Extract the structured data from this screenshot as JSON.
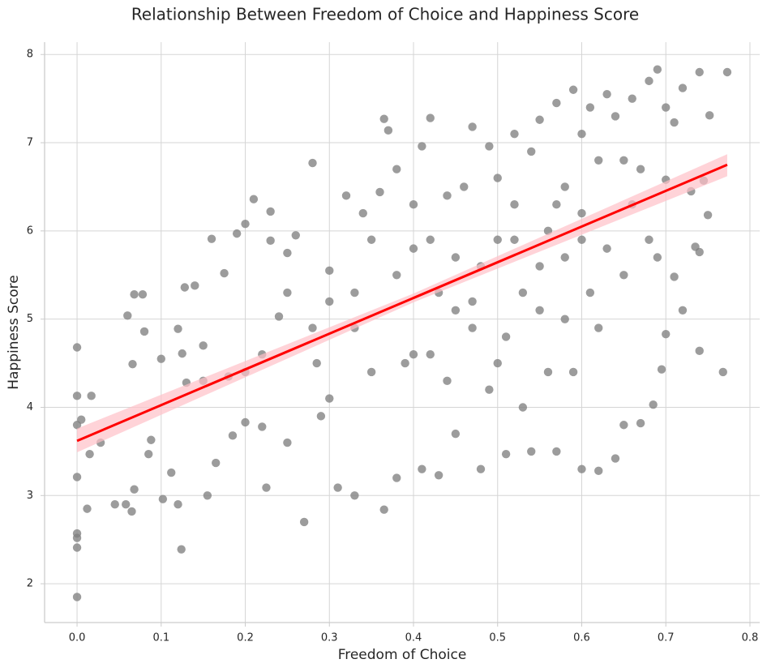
{
  "chart_data": {
    "type": "scatter",
    "title": "Relationship Between Freedom of Choice and Happiness Score",
    "x_label": "Freedom of Choice",
    "y_label": "Happiness Score",
    "x": [
      0,
      0,
      0,
      0,
      0,
      0,
      0,
      0,
      0.005,
      0.012,
      0.015,
      0.017,
      0.028,
      0.045,
      0.058,
      0.065,
      0.068,
      0.06,
      0.066,
      0.068,
      0.078,
      0.08,
      0.085,
      0.088,
      0.1,
      0.102,
      0.112,
      0.12,
      0.124,
      0.12,
      0.125,
      0.128,
      0.13,
      0.14,
      0.15,
      0.155,
      0.16,
      0.165,
      0.175,
      0.18,
      0.185,
      0.19,
      0.2,
      0.2,
      0.21,
      0.22,
      0.225,
      0.23,
      0.23,
      0.24,
      0.25,
      0.25,
      0.26,
      0.27,
      0.28,
      0.285,
      0.29,
      0.3,
      0.3,
      0.31,
      0.32,
      0.33,
      0.33,
      0.34,
      0.35,
      0.36,
      0.365,
      0.365,
      0.37,
      0.38,
      0.38,
      0.39,
      0.4,
      0.4,
      0.41,
      0.41,
      0.42,
      0.42,
      0.43,
      0.43,
      0.44,
      0.45,
      0.45,
      0.46,
      0.47,
      0.47,
      0.48,
      0.48,
      0.49,
      0.49,
      0.5,
      0.5,
      0.51,
      0.51,
      0.52,
      0.52,
      0.53,
      0.53,
      0.54,
      0.54,
      0.55,
      0.55,
      0.56,
      0.56,
      0.57,
      0.57,
      0.58,
      0.58,
      0.59,
      0.59,
      0.6,
      0.6,
      0.6,
      0.61,
      0.61,
      0.62,
      0.62,
      0.62,
      0.63,
      0.63,
      0.64,
      0.64,
      0.65,
      0.65,
      0.66,
      0.66,
      0.67,
      0.67,
      0.68,
      0.68,
      0.685,
      0.69,
      0.69,
      0.695,
      0.7,
      0.7,
      0.7,
      0.71,
      0.71,
      0.72,
      0.72,
      0.73,
      0.735,
      0.74,
      0.74,
      0.745,
      0.75,
      0.752,
      0.768,
      0.773,
      0.74,
      0.2,
      0.15,
      0.35,
      0.33,
      0.28,
      0.45,
      0.5,
      0.55,
      0.42,
      0.38,
      0.47,
      0.58,
      0.65,
      0.6,
      0.25,
      0.22,
      0.3,
      0.4,
      0.44,
      0.52,
      0.57
    ],
    "series": [
      {
        "color": "#808080",
        "values": [
          1.85,
          2.52,
          2.57,
          2.41,
          3.21,
          3.8,
          4.13,
          4.68,
          3.86,
          2.85,
          3.47,
          4.13,
          3.6,
          2.9,
          2.9,
          2.82,
          3.07,
          5.04,
          4.49,
          5.28,
          5.28,
          4.86,
          3.47,
          3.63,
          4.55,
          2.96,
          3.26,
          2.9,
          2.39,
          4.89,
          4.61,
          5.36,
          4.28,
          5.38,
          4.7,
          3.0,
          5.91,
          3.37,
          5.52,
          4.35,
          3.68,
          5.97,
          6.08,
          4.4,
          6.36,
          3.78,
          3.09,
          5.89,
          6.22,
          5.03,
          5.75,
          3.6,
          5.95,
          2.7,
          6.77,
          4.5,
          3.9,
          4.1,
          5.55,
          3.09,
          6.4,
          3.0,
          4.9,
          6.2,
          5.9,
          6.44,
          2.84,
          7.27,
          7.14,
          6.7,
          3.2,
          4.5,
          5.8,
          6.3,
          6.96,
          3.3,
          7.28,
          4.6,
          5.3,
          3.23,
          6.4,
          3.7,
          5.1,
          6.5,
          7.18,
          4.9,
          3.3,
          5.6,
          6.96,
          4.2,
          5.9,
          6.6,
          3.47,
          4.8,
          6.3,
          7.1,
          5.3,
          4.0,
          6.9,
          3.5,
          5.6,
          7.26,
          4.4,
          6.0,
          7.45,
          3.5,
          6.5,
          5.0,
          7.6,
          4.4,
          3.3,
          6.2,
          7.1,
          5.3,
          7.4,
          3.28,
          4.9,
          6.8,
          7.55,
          5.8,
          3.42,
          7.3,
          5.5,
          3.8,
          6.3,
          7.5,
          3.82,
          6.7,
          5.9,
          7.7,
          4.03,
          7.83,
          5.7,
          4.43,
          4.83,
          6.58,
          7.4,
          5.48,
          7.23,
          5.1,
          7.62,
          6.45,
          5.82,
          7.8,
          4.64,
          6.57,
          6.18,
          7.31,
          4.4,
          7.8,
          5.76,
          3.83,
          4.3,
          4.4,
          5.3,
          4.9,
          5.7,
          4.5,
          5.1,
          5.9,
          5.5,
          5.2,
          5.7,
          6.8,
          5.9,
          5.3,
          4.6,
          5.2,
          4.6,
          4.3,
          5.9,
          6.3
        ]
      }
    ],
    "regression": {
      "color": "#ff0000",
      "band_color": "#ffc0c8",
      "x": [
        0,
        0.4,
        0.773
      ],
      "values": [
        3.62,
        5.24,
        6.75
      ],
      "lower": [
        3.49,
        5.19,
        6.62
      ],
      "upper": [
        3.76,
        5.29,
        6.87
      ]
    },
    "xlim": [
      -0.0386,
      0.8116
    ],
    "ylim": [
      1.56,
      8.14
    ],
    "xticks": [
      {
        "value": 0,
        "label": "0.0"
      },
      0.1,
      0.2,
      0.3,
      0.4,
      0.5,
      0.6,
      0.7,
      0.8
    ],
    "yticks": [
      2,
      3,
      4,
      5,
      6,
      7,
      8
    ],
    "grid": true
  }
}
